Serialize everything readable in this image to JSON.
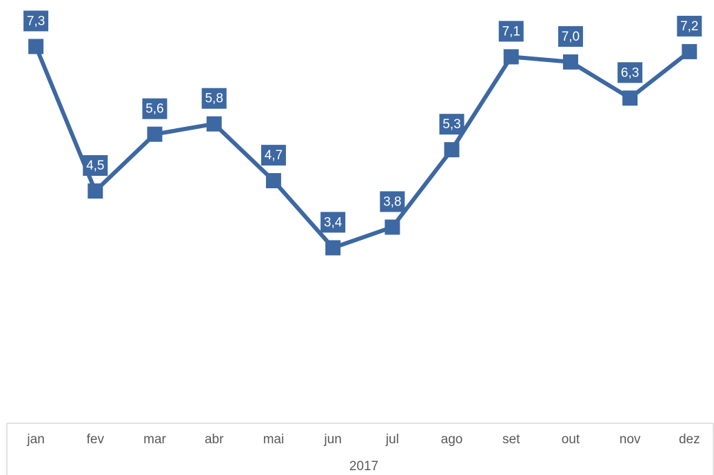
{
  "chart_data": {
    "type": "line",
    "categories": [
      "jan",
      "fev",
      "mar",
      "abr",
      "mai",
      "jun",
      "jul",
      "ago",
      "set",
      "out",
      "nov",
      "dez"
    ],
    "group_label": "2017",
    "series": [
      {
        "color": "#3d68a1",
        "values": [
          7.3,
          4.5,
          5.6,
          5.8,
          4.7,
          3.4,
          3.8,
          5.3,
          7.1,
          7.0,
          6.3,
          7.2
        ],
        "value_labels": [
          "7,3",
          "4,5",
          "5,6",
          "5,8",
          "4,7",
          "3,4",
          "3,8",
          "5,3",
          "7,1",
          "7,0",
          "6,3",
          "7,2"
        ]
      }
    ],
    "ylim": [
      0,
      8
    ]
  }
}
